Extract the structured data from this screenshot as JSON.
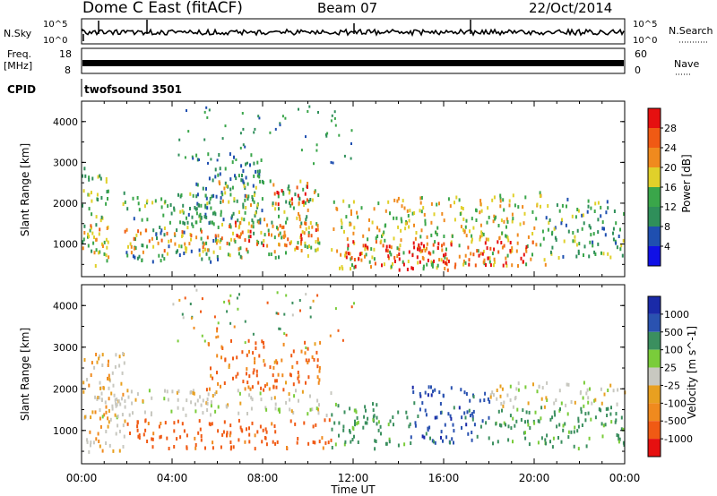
{
  "header": {
    "station": "Dome C East (fitACF)",
    "beam": "Beam 07",
    "date": "22/Oct/2014"
  },
  "noise_panel": {
    "left_label": "N.Sky",
    "right_label": "N.Search",
    "tick_top": "10^5",
    "tick_bottom": "10^0",
    "right_tick_top": "10^5",
    "right_tick_bottom": "10^0"
  },
  "freq_panel": {
    "left_label_1": "Freq.",
    "left_label_2": "[MHz]",
    "right_label": "Nave",
    "left_ticks": [
      "18",
      "8"
    ],
    "right_ticks": [
      "60",
      "0"
    ]
  },
  "cpid": {
    "label": "CPID",
    "value": "twofsound 3501"
  },
  "colors": {
    "power_scale": [
      "#1010e6",
      "#1f4fb0",
      "#2f8f5a",
      "#3aa64a",
      "#e0d02a",
      "#f08a1e",
      "#f05a14",
      "#e61010"
    ],
    "velocity_scale": [
      "#e61010",
      "#f05a14",
      "#f08a1e",
      "#e8a020",
      "#c8c8c0",
      "#7acc3a",
      "#3b8f5f",
      "#2a52b0",
      "#1a2aa8"
    ]
  },
  "chart_data": [
    {
      "type": "heatmap",
      "title": "",
      "ylabel": "Slant Range [km]",
      "xlabel": "",
      "ylim": [
        200,
        4500
      ],
      "xlim": [
        0,
        24
      ],
      "y_ticks": [
        "1000",
        "2000",
        "3000",
        "4000"
      ],
      "colorbar": {
        "label": "Power [dB]",
        "ticks": [
          "28",
          "24",
          "20",
          "16",
          "12",
          "8",
          "4"
        ],
        "range": [
          0,
          32
        ]
      },
      "bands": [
        {
          "t0": 0.0,
          "t1": 1.2,
          "r0": 500,
          "r1": 2900,
          "level": 14
        },
        {
          "t0": 0.0,
          "t1": 1.2,
          "r0": 700,
          "r1": 1500,
          "level": 20
        },
        {
          "t0": 1.8,
          "t1": 6.0,
          "r0": 600,
          "r1": 2300,
          "level": 12
        },
        {
          "t0": 1.8,
          "t1": 6.0,
          "r0": 800,
          "r1": 1400,
          "level": 22
        },
        {
          "t0": 5.0,
          "t1": 8.0,
          "r0": 1500,
          "r1": 3300,
          "level": 10
        },
        {
          "t0": 6.0,
          "t1": 10.5,
          "r0": 700,
          "r1": 2600,
          "level": 16
        },
        {
          "t0": 6.0,
          "t1": 10.5,
          "r0": 900,
          "r1": 1600,
          "level": 24
        },
        {
          "t0": 8.5,
          "t1": 10.0,
          "r0": 2000,
          "r1": 2500,
          "level": 28
        },
        {
          "t0": 11.0,
          "t1": 16.5,
          "r0": 400,
          "r1": 2200,
          "level": 18
        },
        {
          "t0": 11.5,
          "t1": 16.5,
          "r0": 400,
          "r1": 1100,
          "level": 30
        },
        {
          "t0": 16.5,
          "t1": 20.5,
          "r0": 500,
          "r1": 2300,
          "level": 18
        },
        {
          "t0": 17.0,
          "t1": 20.0,
          "r0": 500,
          "r1": 1100,
          "level": 29
        },
        {
          "t0": 20.5,
          "t1": 24.0,
          "r0": 700,
          "r1": 2200,
          "level": 12
        }
      ]
    },
    {
      "type": "heatmap",
      "title": "",
      "ylabel": "Slant Range [km]",
      "xlabel": "Time UT",
      "ylim": [
        200,
        4500
      ],
      "xlim": [
        0,
        24
      ],
      "y_ticks": [
        "1000",
        "2000",
        "3000",
        "4000"
      ],
      "x_ticks": [
        "00:00",
        "04:00",
        "08:00",
        "12:00",
        "16:00",
        "20:00",
        "00:00"
      ],
      "colorbar": {
        "label": "Velocity [m s^-1]",
        "ticks": [
          "1000",
          "500",
          "100",
          "25",
          "-25",
          "-100",
          "-500",
          "-1000"
        ]
      },
      "bands": [
        {
          "t0": 0.0,
          "t1": 2.0,
          "r0": 500,
          "r1": 2900,
          "level": -30
        },
        {
          "t0": 0.5,
          "t1": 2.0,
          "r0": 1300,
          "r1": 2100,
          "level": 0
        },
        {
          "t0": 2.0,
          "t1": 11.0,
          "r0": 1400,
          "r1": 2000,
          "level": 0
        },
        {
          "t0": 2.0,
          "t1": 11.0,
          "r0": 600,
          "r1": 1300,
          "level": -200
        },
        {
          "t0": 5.5,
          "t1": 10.5,
          "r0": 2000,
          "r1": 3200,
          "level": -150
        },
        {
          "t0": 11.0,
          "t1": 14.5,
          "r0": 600,
          "r1": 1700,
          "level": 150
        },
        {
          "t0": 14.5,
          "t1": 18.0,
          "r0": 700,
          "r1": 2100,
          "level": 700
        },
        {
          "t0": 18.0,
          "t1": 24.0,
          "r0": 600,
          "r1": 1600,
          "level": 150
        },
        {
          "t0": 18.0,
          "t1": 24.0,
          "r0": 1600,
          "r1": 2200,
          "level": 0
        }
      ]
    }
  ]
}
